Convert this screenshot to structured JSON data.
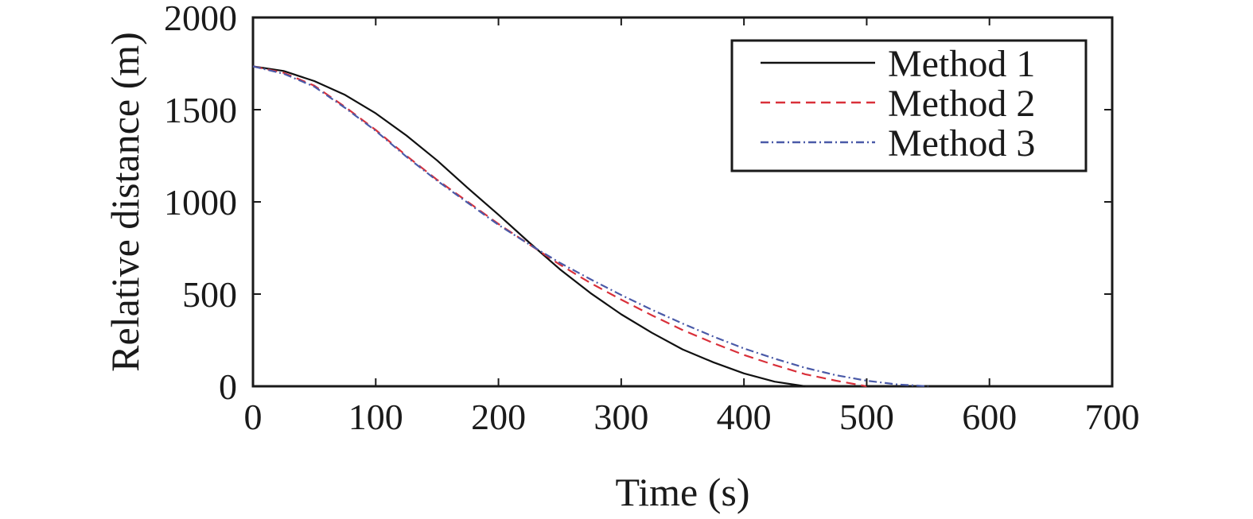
{
  "chart_data": {
    "type": "line",
    "title": "",
    "xlabel": "Time (s)",
    "ylabel": "Relative distance (m)",
    "xlim": [
      0,
      700
    ],
    "ylim": [
      0,
      2000
    ],
    "xticks": [
      0,
      100,
      200,
      300,
      400,
      500,
      600,
      700
    ],
    "yticks": [
      0,
      500,
      1000,
      1500,
      2000
    ],
    "grid": false,
    "legend_position": "top-right",
    "series": [
      {
        "name": "Method 1",
        "color": "#111111",
        "style": "solid",
        "x": [
          0,
          25,
          50,
          75,
          100,
          125,
          150,
          175,
          200,
          225,
          250,
          275,
          300,
          325,
          350,
          375,
          400,
          425,
          450
        ],
        "y": [
          1735,
          1710,
          1655,
          1580,
          1480,
          1360,
          1225,
          1075,
          930,
          780,
          635,
          505,
          390,
          290,
          200,
          130,
          70,
          25,
          0
        ]
      },
      {
        "name": "Method 2",
        "color": "#d9303a",
        "style": "dashed",
        "x": [
          0,
          25,
          50,
          75,
          100,
          125,
          150,
          175,
          200,
          225,
          250,
          275,
          300,
          325,
          350,
          375,
          400,
          425,
          450,
          475,
          500
        ],
        "y": [
          1735,
          1700,
          1630,
          1515,
          1390,
          1250,
          1120,
          1000,
          880,
          770,
          660,
          560,
          470,
          385,
          305,
          235,
          170,
          115,
          65,
          30,
          0
        ]
      },
      {
        "name": "Method 3",
        "color": "#4a5aa8",
        "style": "dashdot",
        "x": [
          0,
          25,
          50,
          75,
          100,
          125,
          150,
          175,
          200,
          225,
          250,
          275,
          300,
          325,
          350,
          375,
          400,
          425,
          450,
          475,
          500,
          525,
          550
        ],
        "y": [
          1735,
          1695,
          1625,
          1510,
          1385,
          1245,
          1115,
          995,
          875,
          770,
          670,
          580,
          495,
          415,
          340,
          270,
          205,
          150,
          100,
          60,
          30,
          10,
          0
        ]
      }
    ]
  }
}
